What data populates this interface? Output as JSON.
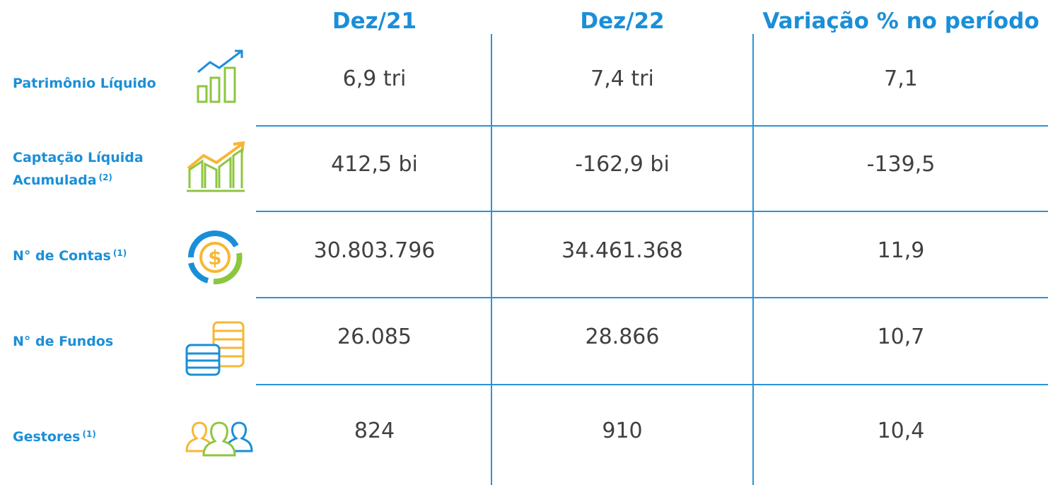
{
  "header": {
    "columns": [
      "Dez/21",
      "Dez/22",
      "Variação % no período"
    ]
  },
  "table": {
    "rows": [
      {
        "label": "Patrimônio Líquido",
        "values": [
          "6,9 tri",
          "7,4 tri",
          "7,1"
        ]
      },
      {
        "label": "Captação Líquida Acumulada",
        "note": "(2)",
        "values": [
          "412,5 bi",
          "-162,9 bi",
          "-139,5"
        ]
      },
      {
        "label": "N° de Contas",
        "note": "(1)",
        "values": [
          "30.803.796",
          "34.461.368",
          "11,9"
        ]
      },
      {
        "label": "N° de Fundos",
        "values": [
          "26.085",
          "28.866",
          "10,7"
        ]
      },
      {
        "label": "Gestores",
        "note": "(1)",
        "values": [
          "824",
          "910",
          "10,4"
        ]
      }
    ]
  }
}
